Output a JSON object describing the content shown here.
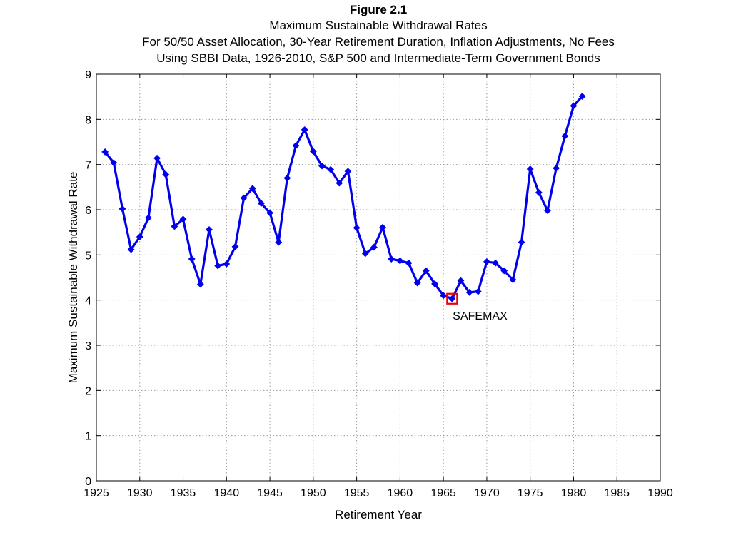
{
  "chart_data": {
    "type": "line",
    "title": "Figure 2.1",
    "subtitle_lines": [
      "Maximum Sustainable Withdrawal Rates",
      "For 50/50 Asset Allocation, 30-Year Retirement Duration, Inflation Adjustments, No Fees",
      "Using SBBI Data, 1926-2010, S&P 500 and Intermediate-Term Government Bonds"
    ],
    "xlabel": "Retirement Year",
    "ylabel": "Maximum Sustainable Withdrawal Rate",
    "xlim": [
      1925,
      1990
    ],
    "ylim": [
      0,
      9
    ],
    "xticks": [
      1925,
      1930,
      1935,
      1940,
      1945,
      1950,
      1955,
      1960,
      1965,
      1970,
      1975,
      1980,
      1985,
      1990
    ],
    "yticks": [
      0,
      1,
      2,
      3,
      4,
      5,
      6,
      7,
      8,
      9
    ],
    "grid": true,
    "series_color": "#0000ee",
    "annotation_color": "#ee0000",
    "series": [
      {
        "x": [
          1926,
          1927,
          1928,
          1929,
          1930,
          1931,
          1932,
          1933,
          1934,
          1935,
          1936,
          1937,
          1938,
          1939,
          1940,
          1941,
          1942,
          1943,
          1944,
          1945,
          1946,
          1947,
          1948,
          1949,
          1950,
          1951,
          1952,
          1953,
          1954,
          1955,
          1956,
          1957,
          1958,
          1959,
          1960,
          1961,
          1962,
          1963,
          1964,
          1965,
          1966,
          1967,
          1968,
          1969,
          1970,
          1971,
          1972,
          1973,
          1974,
          1975,
          1976,
          1977,
          1978,
          1979,
          1980,
          1981
        ],
        "values": [
          7.28,
          7.04,
          6.02,
          5.12,
          5.4,
          5.82,
          7.14,
          6.78,
          5.63,
          5.79,
          4.91,
          4.35,
          5.56,
          4.76,
          4.8,
          5.18,
          6.26,
          6.47,
          6.14,
          5.93,
          5.28,
          6.7,
          7.42,
          7.77,
          7.29,
          6.97,
          6.89,
          6.59,
          6.85,
          5.6,
          5.03,
          5.17,
          5.61,
          4.91,
          4.87,
          4.82,
          4.38,
          4.65,
          4.36,
          4.1,
          4.03,
          4.43,
          4.17,
          4.19,
          4.85,
          4.82,
          4.65,
          4.45,
          5.28,
          6.9,
          6.38,
          5.98,
          6.92,
          7.63,
          8.3,
          8.51
        ]
      }
    ],
    "annotation": {
      "label": "SAFEMAX",
      "x": 1966,
      "y": 4.03
    }
  }
}
